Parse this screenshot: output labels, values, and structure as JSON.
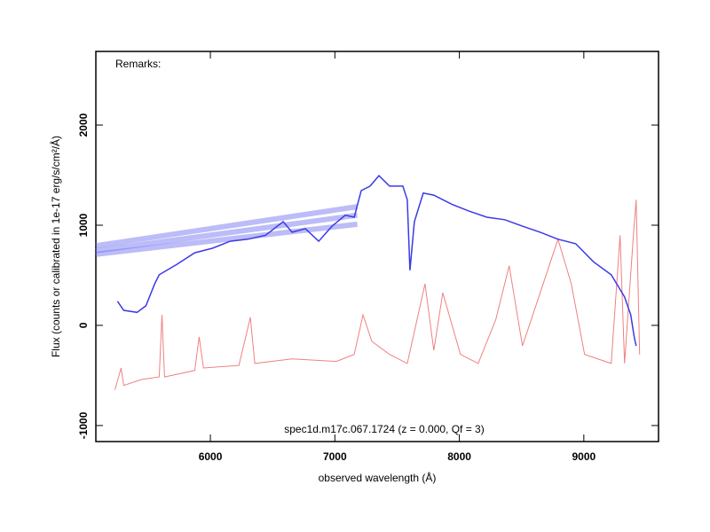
{
  "chart_data": {
    "type": "line",
    "remarks": "Remarks:",
    "title": "spec1d.m17c.067.1724 (z = 0.000, Qf = 3)",
    "x_label": "observed wavelength (Å)",
    "y_label": "Flux (counts or calibrated in 1e-17 erg/s/cm²/Å)",
    "xlim": [
      5080,
      9600
    ],
    "ylim": [
      -1160,
      2735
    ],
    "xticks": [
      6000,
      7000,
      8000,
      9000
    ],
    "yticks": [
      -1000,
      0,
      1000,
      2000
    ],
    "series": [
      {
        "color": "#6a6af0",
        "line_width": 6,
        "opacity": 0.45,
        "x": [
          5080,
          7180
        ],
        "values": [
          795,
          1185
        ]
      },
      {
        "color": "#6a6af0",
        "line_width": 6,
        "opacity": 0.45,
        "x": [
          5080,
          7180
        ],
        "values": [
          745,
          1100
        ]
      },
      {
        "color": "#6a6af0",
        "line_width": 6,
        "opacity": 0.45,
        "x": [
          5080,
          7180
        ],
        "values": [
          710,
          1010
        ]
      },
      {
        "color": "#f08080",
        "line_width": 1,
        "opacity": 1,
        "x": [
          5233,
          5283,
          5304,
          5447,
          5589,
          5611,
          5632,
          5874,
          5910,
          5945,
          6229,
          6321,
          6357,
          6656,
          7012,
          7155,
          7226,
          7297,
          7439,
          7582,
          7724,
          7795,
          7867,
          8009,
          8151,
          8293,
          8400,
          8507,
          8650,
          8792,
          8899,
          9006,
          9220,
          9291,
          9327,
          9398,
          9420,
          9448
        ],
        "values": [
          -645,
          -425,
          -600,
          -540,
          -515,
          105,
          -515,
          -450,
          -115,
          -425,
          -400,
          80,
          -380,
          -335,
          -360,
          -290,
          105,
          -160,
          -290,
          -380,
          415,
          -250,
          325,
          -290,
          -380,
          60,
          595,
          -205,
          325,
          860,
          415,
          -290,
          -380,
          900,
          -380,
          900,
          1255,
          -290
        ]
      },
      {
        "color": "#3a3ae8",
        "line_width": 1.5,
        "opacity": 1,
        "x": [
          5254,
          5304,
          5411,
          5482,
          5553,
          5589,
          5731,
          5874,
          6016,
          6158,
          6300,
          6443,
          6585,
          6656,
          6763,
          6870,
          6977,
          7084,
          7155,
          7212,
          7283,
          7354,
          7439,
          7546,
          7582,
          7603,
          7639,
          7710,
          7795,
          7938,
          8080,
          8222,
          8365,
          8507,
          8650,
          8792,
          8935,
          9077,
          9220,
          9327,
          9377,
          9405,
          9420
        ],
        "values": [
          240,
          150,
          130,
          195,
          415,
          505,
          610,
          725,
          770,
          840,
          860,
          900,
          1035,
          930,
          965,
          840,
          990,
          1100,
          1080,
          1345,
          1390,
          1495,
          1390,
          1390,
          1255,
          550,
          1035,
          1320,
          1300,
          1210,
          1140,
          1080,
          1055,
          990,
          930,
          860,
          815,
          635,
          505,
          285,
          105,
          -115,
          -205
        ]
      }
    ]
  }
}
